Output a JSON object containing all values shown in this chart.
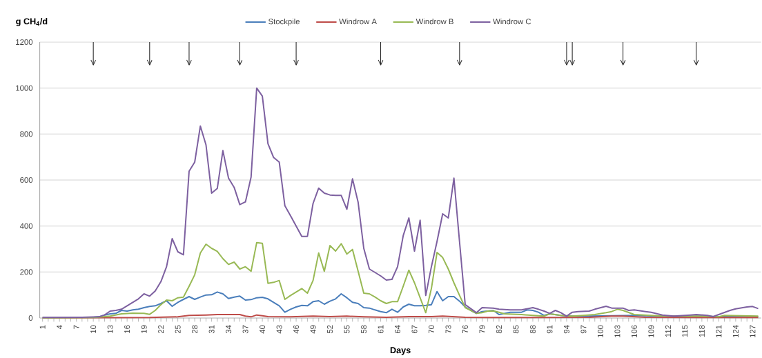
{
  "chart_data": {
    "type": "line",
    "xlabel": "Days",
    "ylabel": "g CH$_{4}$/d",
    "xlim": [
      0.5,
      128.5
    ],
    "xticks": [
      1,
      4,
      7,
      10,
      13,
      16,
      19,
      22,
      25,
      28,
      31,
      34,
      37,
      40,
      43,
      46,
      49,
      52,
      55,
      58,
      61,
      64,
      67,
      70,
      73,
      76,
      79,
      82,
      85,
      88,
      91,
      94,
      97,
      100,
      103,
      106,
      109,
      112,
      115,
      118,
      121,
      124,
      127
    ],
    "ylim": [
      0,
      1200
    ],
    "yticks": [
      0,
      200,
      400,
      600,
      800,
      1000,
      1200
    ],
    "grid": "y",
    "legend": "top",
    "marker": "none",
    "line_style": "solid",
    "series": [
      {
        "name": "Stockpile",
        "color": "#4a7ebb",
        "x": [
          1,
          10,
          11,
          12,
          13,
          14,
          15,
          16,
          17,
          18,
          19,
          20,
          21,
          22,
          23,
          24,
          25,
          26,
          27,
          28,
          29,
          30,
          31,
          32,
          33,
          34,
          35,
          36,
          37,
          38,
          39,
          40,
          41,
          42,
          43,
          44,
          45,
          46,
          47,
          48,
          49,
          50,
          51,
          52,
          53,
          54,
          55,
          56,
          57,
          58,
          59,
          60,
          61,
          62,
          63,
          64,
          65,
          66,
          67,
          68,
          69,
          70,
          71,
          72,
          73,
          74,
          75,
          76,
          77,
          78,
          79,
          81,
          82,
          84,
          86,
          87,
          88,
          89,
          90,
          91,
          93,
          94,
          98,
          106,
          110,
          114,
          118,
          121,
          125,
          128
        ],
        "values": [
          2,
          3,
          5,
          13,
          18,
          20,
          33,
          30,
          35,
          38,
          45,
          50,
          53,
          63,
          75,
          51,
          68,
          81,
          93,
          81,
          91,
          100,
          101,
          113,
          105,
          85,
          91,
          95,
          78,
          80,
          88,
          90,
          83,
          68,
          53,
          25,
          38,
          48,
          55,
          53,
          71,
          75,
          60,
          73,
          83,
          105,
          88,
          68,
          63,
          45,
          43,
          35,
          28,
          23,
          38,
          25,
          48,
          60,
          53,
          53,
          55,
          58,
          115,
          75,
          93,
          93,
          73,
          48,
          33,
          20,
          28,
          33,
          15,
          25,
          25,
          35,
          33,
          25,
          11,
          18,
          11,
          8,
          8,
          11,
          8,
          6,
          8,
          5,
          8,
          6
        ]
      },
      {
        "name": "Windrow A",
        "color": "#be4b48",
        "x": [
          1,
          20,
          25,
          27,
          30,
          32,
          36,
          37,
          38,
          39,
          40,
          41,
          45,
          49,
          52,
          55,
          58,
          62,
          66,
          70,
          72,
          76,
          80,
          98,
          102,
          104,
          108,
          128
        ],
        "values": [
          1,
          2,
          5,
          11,
          13,
          15,
          15,
          8,
          5,
          13,
          10,
          6,
          5,
          8,
          6,
          8,
          5,
          3,
          6,
          6,
          8,
          3,
          2,
          3,
          8,
          8,
          3,
          2
        ]
      },
      {
        "name": "Windrow B",
        "color": "#98b954",
        "x": [
          1,
          10,
          11,
          13,
          15,
          17,
          19,
          20,
          21,
          22,
          23,
          24,
          25,
          26,
          27,
          28,
          29,
          30,
          31,
          32,
          33,
          34,
          35,
          36,
          37,
          38,
          39,
          40,
          41,
          42,
          43,
          44,
          45,
          46,
          47,
          48,
          49,
          50,
          51,
          52,
          53,
          54,
          55,
          56,
          57,
          58,
          59,
          60,
          61,
          62,
          63,
          64,
          65,
          66,
          67,
          68,
          69,
          70,
          71,
          72,
          73,
          74,
          75,
          76,
          77,
          78,
          79,
          80,
          81,
          82,
          83,
          86,
          88,
          90,
          91,
          93,
          95,
          97,
          99,
          101,
          102,
          103,
          104,
          106,
          110,
          114,
          118,
          121,
          122,
          125,
          128
        ],
        "values": [
          1,
          2,
          4,
          8,
          18,
          21,
          20,
          16,
          33,
          58,
          78,
          75,
          88,
          91,
          138,
          188,
          283,
          321,
          303,
          290,
          258,
          233,
          243,
          213,
          223,
          203,
          328,
          325,
          151,
          155,
          163,
          81,
          98,
          113,
          128,
          108,
          163,
          283,
          203,
          315,
          291,
          323,
          278,
          298,
          203,
          108,
          105,
          91,
          75,
          63,
          71,
          71,
          138,
          208,
          153,
          88,
          23,
          128,
          285,
          263,
          213,
          153,
          98,
          45,
          33,
          20,
          23,
          30,
          31,
          25,
          18,
          15,
          11,
          8,
          18,
          11,
          8,
          11,
          15,
          23,
          28,
          38,
          33,
          15,
          10,
          8,
          8,
          5,
          11,
          10,
          8
        ]
      },
      {
        "name": "Windrow C",
        "color": "#7d60a0",
        "x": [
          1,
          8,
          11,
          12,
          13,
          14,
          15,
          16,
          17,
          18,
          19,
          20,
          21,
          22,
          23,
          24,
          25,
          26,
          27,
          28,
          29,
          30,
          31,
          32,
          33,
          34,
          35,
          36,
          37,
          38,
          39,
          40,
          41,
          42,
          43,
          44,
          45,
          46,
          47,
          48,
          49,
          50,
          51,
          52,
          53,
          54,
          55,
          56,
          57,
          58,
          59,
          60,
          61,
          62,
          63,
          64,
          65,
          66,
          67,
          68,
          69,
          70,
          71,
          72,
          73,
          74,
          75,
          76,
          78,
          79,
          81,
          82,
          84,
          86,
          88,
          89,
          90,
          91,
          92,
          93,
          94,
          95,
          96,
          98,
          99,
          101,
          102,
          104,
          105,
          106,
          108,
          109,
          111,
          113,
          114,
          116,
          117,
          119,
          120,
          121,
          123,
          124,
          126,
          127,
          128
        ],
        "values": [
          2,
          3,
          5,
          13,
          30,
          33,
          38,
          53,
          68,
          83,
          105,
          95,
          118,
          158,
          223,
          345,
          288,
          275,
          638,
          678,
          835,
          753,
          543,
          563,
          728,
          608,
          568,
          493,
          505,
          613,
          1000,
          965,
          758,
          698,
          678,
          488,
          445,
          400,
          355,
          355,
          498,
          565,
          543,
          535,
          533,
          533,
          473,
          605,
          503,
          303,
          213,
          198,
          183,
          165,
          168,
          223,
          358,
          435,
          291,
          425,
          98,
          223,
          333,
          453,
          435,
          608,
          330,
          58,
          23,
          45,
          43,
          38,
          35,
          35,
          45,
          38,
          30,
          20,
          33,
          23,
          8,
          25,
          28,
          30,
          38,
          51,
          43,
          43,
          33,
          35,
          28,
          25,
          13,
          8,
          10,
          13,
          15,
          11,
          6,
          15,
          33,
          40,
          48,
          50,
          41
        ]
      }
    ],
    "ref_lines": [
      {
        "axis": "x",
        "value": 10,
        "color": "#262626"
      },
      {
        "axis": "x",
        "value": 20,
        "color": "#262626"
      },
      {
        "axis": "x",
        "value": 27,
        "color": "#262626"
      },
      {
        "axis": "x",
        "value": 36,
        "color": "#262626"
      },
      {
        "axis": "x",
        "value": 46,
        "color": "#262626"
      },
      {
        "axis": "x",
        "value": 61,
        "color": "#262626"
      },
      {
        "axis": "x",
        "value": 75,
        "color": "#262626"
      },
      {
        "axis": "x",
        "value": 94,
        "color": "#262626"
      },
      {
        "axis": "x",
        "value": 95,
        "color": "#262626"
      },
      {
        "axis": "x",
        "value": 104,
        "color": "#262626"
      },
      {
        "axis": "x",
        "value": 117,
        "color": "#262626"
      }
    ]
  }
}
